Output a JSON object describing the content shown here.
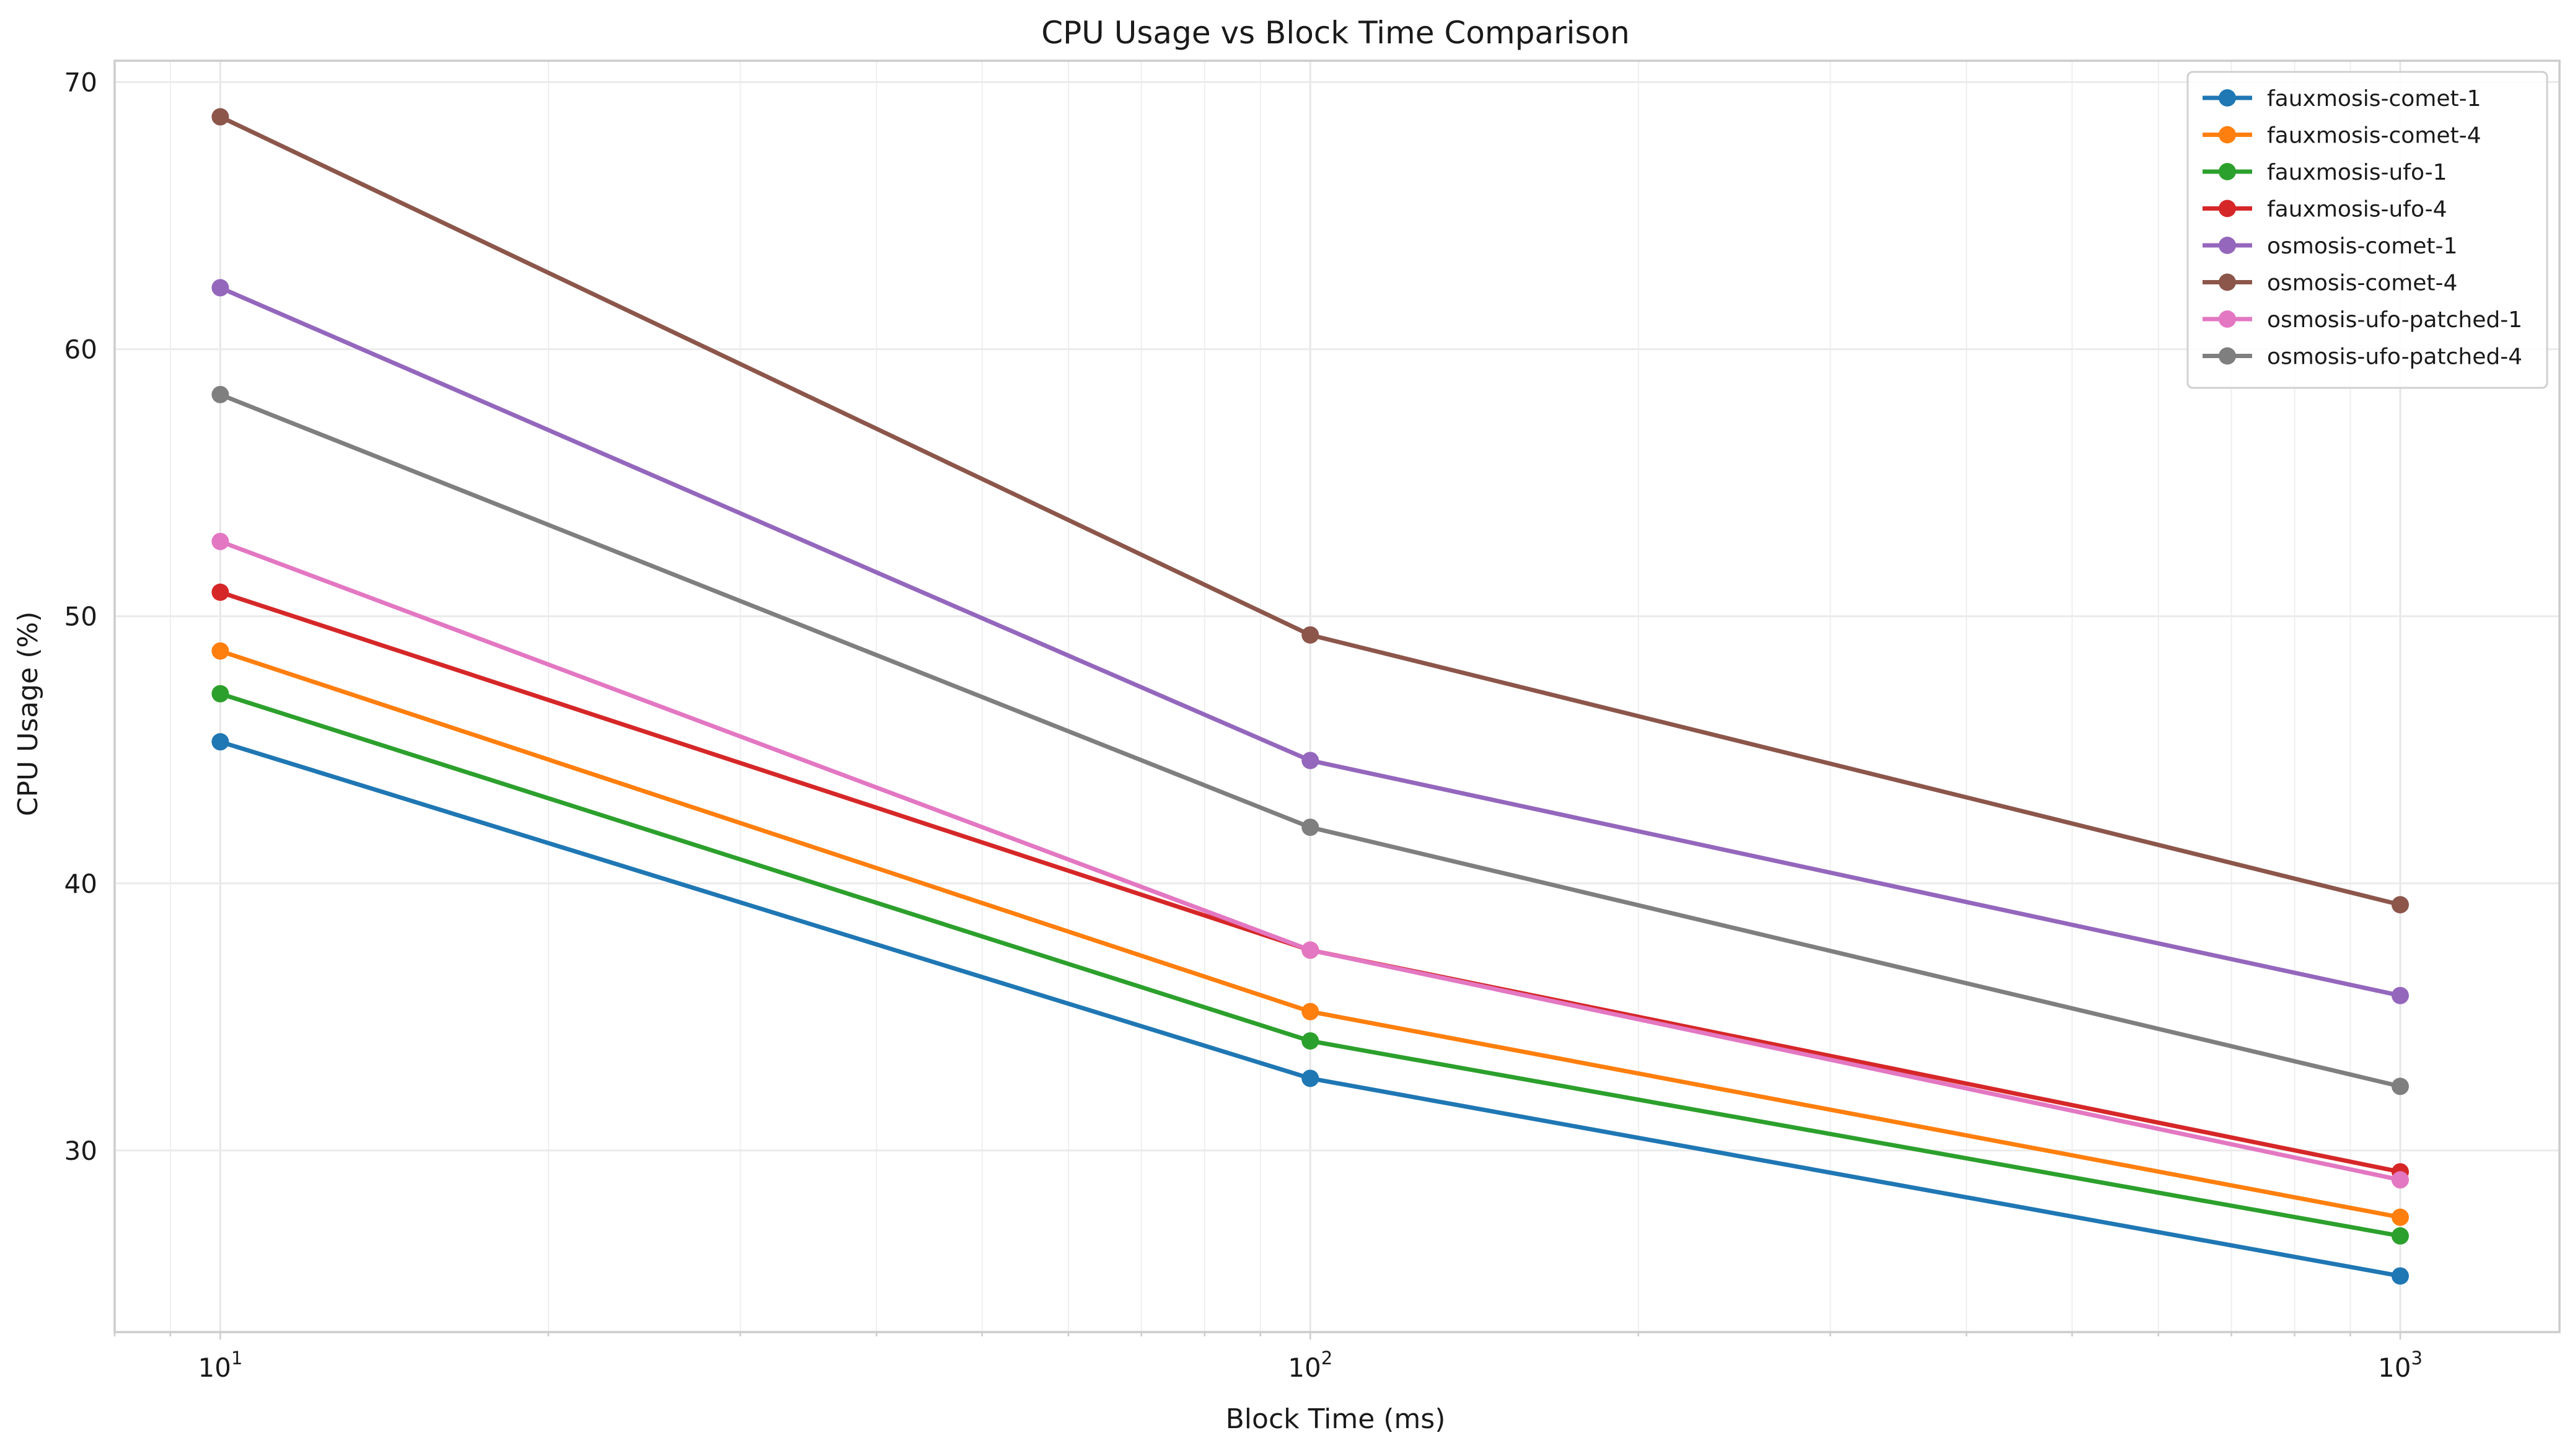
{
  "chart_data": {
    "type": "line",
    "title": "CPU Usage vs Block Time Comparison",
    "xlabel": "Block Time (ms)",
    "ylabel": "CPU Usage (%)",
    "x_scale": "log",
    "x": [
      10,
      100,
      1000
    ],
    "x_tick_labels": [
      {
        "base": "10",
        "exp": "1"
      },
      {
        "base": "10",
        "exp": "2"
      },
      {
        "base": "10",
        "exp": "3"
      }
    ],
    "xlim": [
      8,
      1400
    ],
    "ylim": [
      23.2,
      70.8
    ],
    "yticks": [
      30,
      40,
      50,
      60,
      70
    ],
    "grid": true,
    "legend_position": "top-right",
    "series": [
      {
        "name": "fauxmosis-comet-1",
        "color": "#1f77b4",
        "values": [
          45.3,
          32.7,
          25.3
        ]
      },
      {
        "name": "fauxmosis-comet-4",
        "color": "#ff7f0e",
        "values": [
          48.7,
          35.2,
          27.5
        ]
      },
      {
        "name": "fauxmosis-ufo-1",
        "color": "#2ca02c",
        "values": [
          47.1,
          34.1,
          26.8
        ]
      },
      {
        "name": "fauxmosis-ufo-4",
        "color": "#d62728",
        "values": [
          50.9,
          37.5,
          29.2
        ]
      },
      {
        "name": "osmosis-comet-1",
        "color": "#9467bd",
        "values": [
          62.3,
          44.6,
          35.8
        ]
      },
      {
        "name": "osmosis-comet-4",
        "color": "#8c564b",
        "values": [
          68.7,
          49.3,
          39.2
        ]
      },
      {
        "name": "osmosis-ufo-patched-1",
        "color": "#e377c2",
        "values": [
          52.8,
          37.5,
          28.9
        ]
      },
      {
        "name": "osmosis-ufo-patched-4",
        "color": "#7f7f7f",
        "values": [
          58.3,
          42.1,
          32.4
        ]
      }
    ]
  }
}
